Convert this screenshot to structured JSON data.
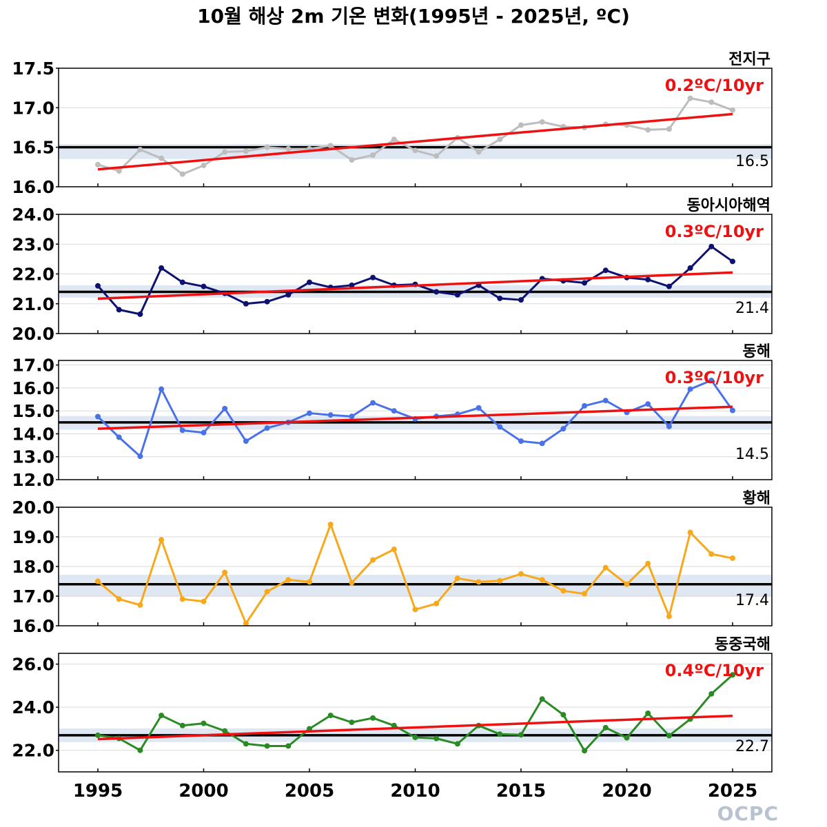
{
  "title": "10월 해상 2m 기온 변화(1995년 - 2025년, ºC)",
  "logo_text": "OCPC",
  "x_ticks": [
    "1995",
    "2000",
    "2005",
    "2010",
    "2015",
    "2020",
    "2025"
  ],
  "chart_data": [
    {
      "type": "line",
      "title": "전지구",
      "x": [
        1995,
        1996,
        1997,
        1998,
        1999,
        2000,
        2001,
        2002,
        2003,
        2004,
        2005,
        2006,
        2007,
        2008,
        2009,
        2010,
        2011,
        2012,
        2013,
        2014,
        2015,
        2016,
        2017,
        2018,
        2019,
        2020,
        2021,
        2022,
        2023,
        2024,
        2025
      ],
      "series": [
        {
          "color": "#bdbdbd",
          "values": [
            16.28,
            16.2,
            16.47,
            16.36,
            16.16,
            16.27,
            16.44,
            16.45,
            16.5,
            16.48,
            16.48,
            16.52,
            16.34,
            16.4,
            16.6,
            16.46,
            16.39,
            16.62,
            16.44,
            16.6,
            16.78,
            16.82,
            16.76,
            16.75,
            16.79,
            16.78,
            16.72,
            16.73,
            17.12,
            17.07,
            16.97
          ]
        }
      ],
      "normal": 16.5,
      "normal_label": "16.5",
      "band": [
        16.35,
        16.54
      ],
      "trend": {
        "start": 16.22,
        "end": 16.92,
        "label": "0.2ºC/10yr"
      },
      "y_ticks": [
        "16.0",
        "16.5",
        "17.0",
        "17.5"
      ],
      "ylim": [
        16.0,
        17.5
      ]
    },
    {
      "type": "line",
      "title": "동아시아해역",
      "x": [
        1995,
        1996,
        1997,
        1998,
        1999,
        2000,
        2001,
        2002,
        2003,
        2004,
        2005,
        2006,
        2007,
        2008,
        2009,
        2010,
        2011,
        2012,
        2013,
        2014,
        2015,
        2016,
        2017,
        2018,
        2019,
        2020,
        2021,
        2022,
        2023,
        2024,
        2025
      ],
      "series": [
        {
          "color": "#0d1270",
          "values": [
            21.6,
            20.8,
            20.65,
            22.2,
            21.72,
            21.58,
            21.35,
            21.0,
            21.07,
            21.3,
            21.72,
            21.55,
            21.62,
            21.88,
            21.62,
            21.65,
            21.4,
            21.3,
            21.62,
            21.18,
            21.13,
            21.84,
            21.77,
            21.7,
            22.12,
            21.88,
            21.81,
            21.58,
            22.2,
            22.92,
            22.42
          ]
        }
      ],
      "normal": 21.4,
      "normal_label": "21.4",
      "band": [
        21.2,
        21.62
      ],
      "trend": {
        "start": 21.17,
        "end": 22.05,
        "label": "0.3ºC/10yr"
      },
      "y_ticks": [
        "20.0",
        "21.0",
        "22.0",
        "23.0",
        "24.0"
      ],
      "ylim": [
        20.0,
        24.0
      ]
    },
    {
      "type": "line",
      "title": "동해",
      "x": [
        1995,
        1996,
        1997,
        1998,
        1999,
        2000,
        2001,
        2002,
        2003,
        2004,
        2005,
        2006,
        2007,
        2008,
        2009,
        2010,
        2011,
        2012,
        2013,
        2014,
        2015,
        2016,
        2017,
        2018,
        2019,
        2020,
        2021,
        2022,
        2023,
        2024,
        2025
      ],
      "series": [
        {
          "color": "#4a72e8",
          "values": [
            14.75,
            13.85,
            13.02,
            15.95,
            14.15,
            14.05,
            15.1,
            13.68,
            14.25,
            14.5,
            14.9,
            14.82,
            14.76,
            15.35,
            15.0,
            14.65,
            14.76,
            14.85,
            15.13,
            14.3,
            13.68,
            13.58,
            14.22,
            15.22,
            15.45,
            14.93,
            15.3,
            14.32,
            15.95,
            16.33,
            15.02
          ]
        }
      ],
      "normal": 14.5,
      "normal_label": "14.5",
      "band": [
        14.18,
        14.78
      ],
      "trend": {
        "start": 14.22,
        "end": 15.18,
        "label": "0.3ºC/10yr"
      },
      "y_ticks": [
        "12.0",
        "13.0",
        "14.0",
        "15.0",
        "16.0",
        "17.0"
      ],
      "ylim": [
        12.0,
        17.2
      ]
    },
    {
      "type": "line",
      "title": "황해",
      "x": [
        1995,
        1996,
        1997,
        1998,
        1999,
        2000,
        2001,
        2002,
        2003,
        2004,
        2005,
        2006,
        2007,
        2008,
        2009,
        2010,
        2011,
        2012,
        2013,
        2014,
        2015,
        2016,
        2017,
        2018,
        2019,
        2020,
        2021,
        2022,
        2023,
        2024,
        2025
      ],
      "series": [
        {
          "color": "#f7a81b",
          "values": [
            17.5,
            16.9,
            16.7,
            18.9,
            16.9,
            16.82,
            17.8,
            16.08,
            17.15,
            17.55,
            17.48,
            19.42,
            17.45,
            18.22,
            18.58,
            16.55,
            16.75,
            17.6,
            17.48,
            17.52,
            17.75,
            17.55,
            17.18,
            17.08,
            17.96,
            17.4,
            18.1,
            16.32,
            19.15,
            18.42,
            18.28
          ]
        }
      ],
      "normal": 17.4,
      "normal_label": "17.4",
      "band": [
        16.98,
        17.72
      ],
      "y_ticks": [
        "16.0",
        "17.0",
        "18.0",
        "19.0",
        "20.0"
      ],
      "ylim": [
        16.0,
        20.0
      ]
    },
    {
      "type": "line",
      "title": "동중국해",
      "x": [
        1995,
        1996,
        1997,
        1998,
        1999,
        2000,
        2001,
        2002,
        2003,
        2004,
        2005,
        2006,
        2007,
        2008,
        2009,
        2010,
        2011,
        2012,
        2013,
        2014,
        2015,
        2016,
        2017,
        2018,
        2019,
        2020,
        2021,
        2022,
        2023,
        2024,
        2025
      ],
      "series": [
        {
          "color": "#2a8a23",
          "values": [
            22.7,
            22.55,
            22.0,
            23.62,
            23.15,
            23.25,
            22.9,
            22.3,
            22.2,
            22.2,
            23.0,
            23.62,
            23.3,
            23.5,
            23.15,
            22.6,
            22.55,
            22.3,
            23.15,
            22.75,
            22.72,
            24.38,
            23.65,
            21.98,
            23.05,
            22.58,
            23.72,
            22.68,
            23.45,
            24.62,
            25.5
          ]
        }
      ],
      "normal": 22.7,
      "normal_label": "22.7",
      "band": [
        22.38,
        23.02
      ],
      "trend": {
        "start": 22.52,
        "end": 23.6,
        "label": "0.4ºC/10yr"
      },
      "y_ticks": [
        "22.0",
        "24.0",
        "26.0"
      ],
      "ylim": [
        21.0,
        26.5
      ]
    }
  ]
}
